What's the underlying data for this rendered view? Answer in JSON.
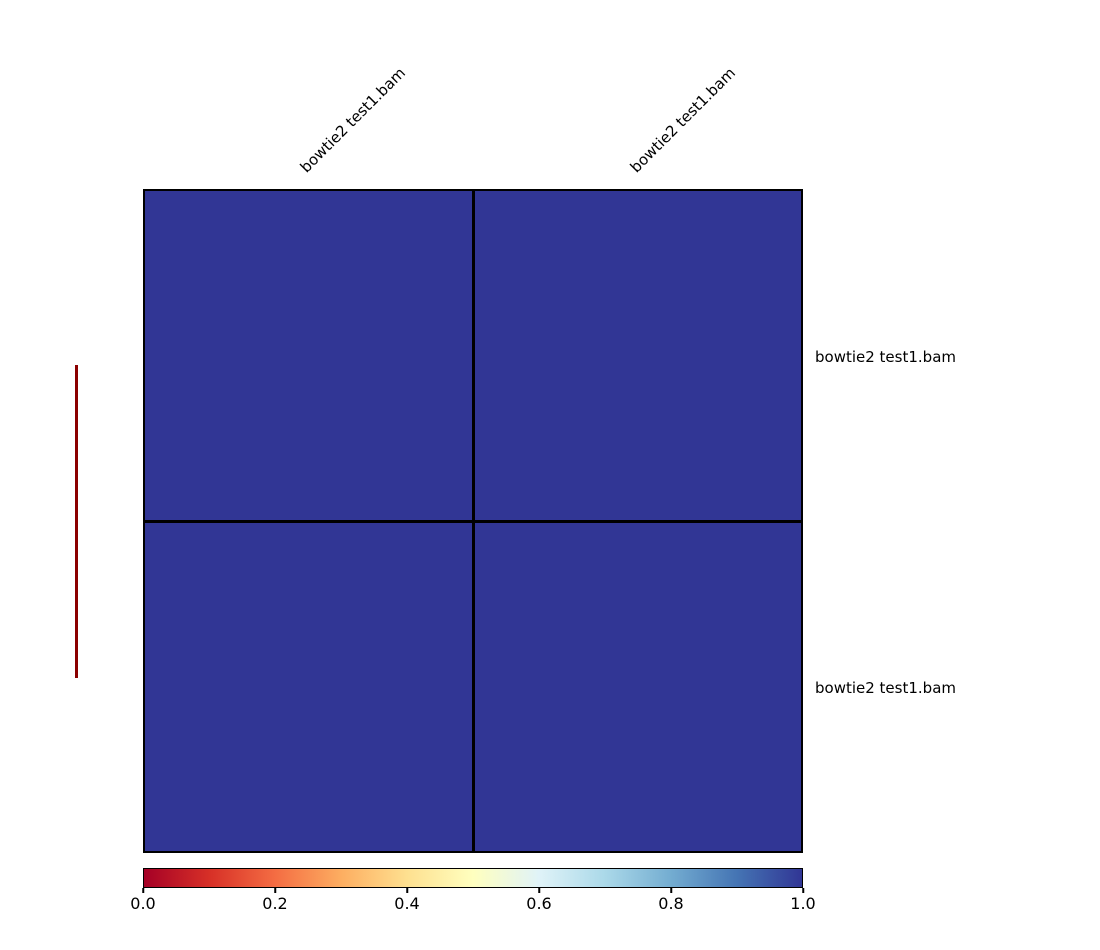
{
  "chart_data": {
    "type": "heatmap",
    "title": "",
    "columns": [
      "bowtie2 test1.bam",
      "bowtie2 test1.bam"
    ],
    "rows": [
      "bowtie2 test1.bam",
      "bowtie2 test1.bam"
    ],
    "values": [
      [
        1.0,
        1.0
      ],
      [
        1.0,
        1.0
      ]
    ],
    "cell_color": "#313695",
    "grid_color": "#000000",
    "colormap": "RdYlBu",
    "legend_position": "bottom",
    "dendrogram": {
      "orientation": "left",
      "color": "#8b0000"
    },
    "colorbar": {
      "min": 0.0,
      "max": 1.0,
      "ticks": [
        "0.0",
        "0.2",
        "0.4",
        "0.6",
        "0.8",
        "1.0"
      ],
      "stops": [
        {
          "pos": 0,
          "color": "#a50026"
        },
        {
          "pos": 10,
          "color": "#d73027"
        },
        {
          "pos": 20,
          "color": "#f46d43"
        },
        {
          "pos": 30,
          "color": "#fdae61"
        },
        {
          "pos": 40,
          "color": "#fee090"
        },
        {
          "pos": 50,
          "color": "#ffffbf"
        },
        {
          "pos": 60,
          "color": "#e0f3f8"
        },
        {
          "pos": 70,
          "color": "#abd9e9"
        },
        {
          "pos": 80,
          "color": "#74add1"
        },
        {
          "pos": 90,
          "color": "#4575b4"
        },
        {
          "pos": 100,
          "color": "#313695"
        }
      ]
    }
  }
}
